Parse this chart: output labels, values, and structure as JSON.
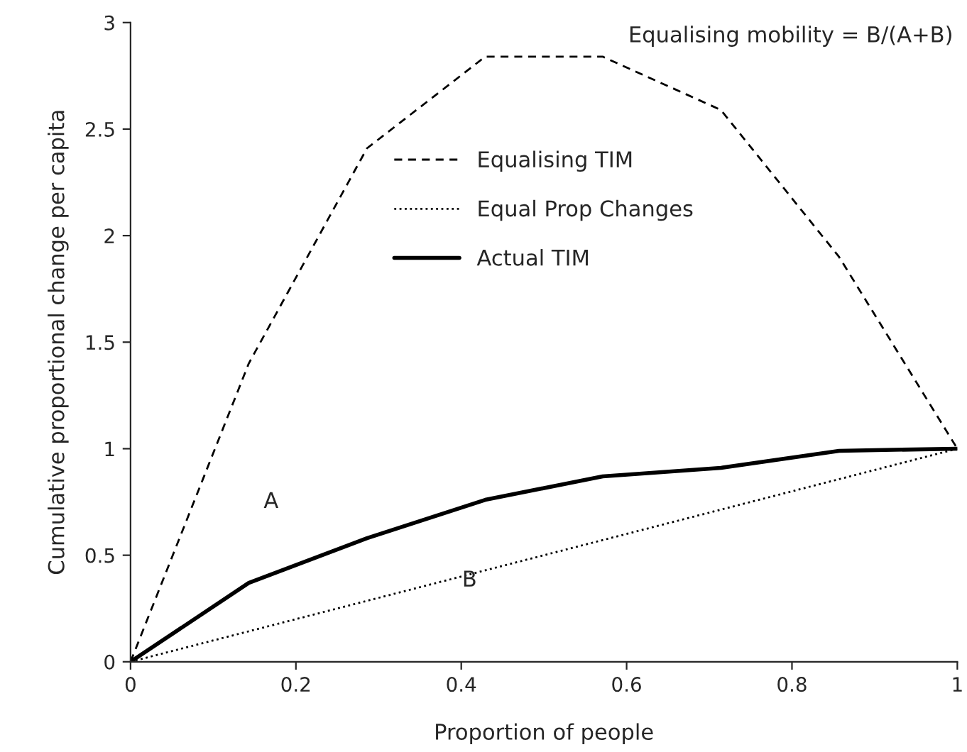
{
  "chart_data": {
    "type": "line",
    "xlabel": "Proportion of people",
    "ylabel": "Cumulative proportional change per capita",
    "xlim": [
      0,
      1
    ],
    "ylim": [
      0,
      3
    ],
    "xticks": [
      0,
      0.2,
      0.4,
      0.6,
      0.8,
      1
    ],
    "yticks": [
      0,
      0.5,
      1,
      1.5,
      2,
      2.5,
      3
    ],
    "grid": false,
    "legend": "top",
    "marker": "none",
    "annotations": [
      "Equalising mobility = B/(A+B)",
      "A",
      "B"
    ],
    "series": [
      {
        "name": "Equalising TIM",
        "color": "#000000",
        "line_style": "dashed",
        "x": [
          0,
          0.143,
          0.286,
          0.429,
          0.571,
          0.714,
          0.857,
          1
        ],
        "values": [
          0,
          1.4,
          2.41,
          2.84,
          2.84,
          2.59,
          1.9,
          1
        ]
      },
      {
        "name": "Equal Prop Changes",
        "color": "#000000",
        "line_style": "dotted",
        "x": [
          0,
          1
        ],
        "values": [
          0,
          1
        ]
      },
      {
        "name": "Actual TIM",
        "color": "#000000",
        "line_style": "solid",
        "x": [
          0,
          0.143,
          0.286,
          0.429,
          0.571,
          0.714,
          0.857,
          1
        ],
        "values": [
          0,
          0.37,
          0.58,
          0.76,
          0.87,
          0.91,
          0.99,
          1
        ]
      }
    ]
  }
}
